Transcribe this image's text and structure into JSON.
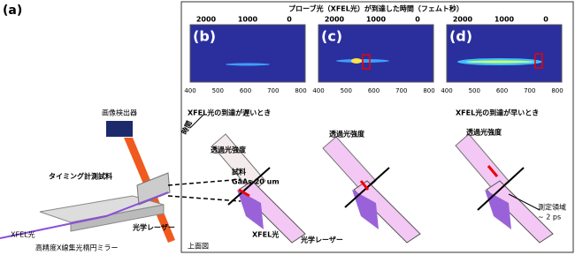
{
  "label_a": "(a)",
  "detector": "画像検出器",
  "timing_sample": "タイミング計測試料",
  "xfel_left": "XFEL光",
  "mirror": "高精度X線集光楕円ミラー",
  "laser_left": "光学レーザー",
  "panel_title": "プローブ光（XFEL光）が到達した時間（フェムト秒）",
  "panels": [
    {
      "label": "(b)",
      "top_ticks": [
        2000,
        1000,
        0
      ],
      "bottom_ticks": [
        400,
        500,
        600,
        700,
        800
      ]
    },
    {
      "label": "(c)",
      "top_ticks": [
        2000,
        1000,
        0
      ],
      "bottom_ticks": [
        400,
        500,
        600,
        700,
        800
      ]
    },
    {
      "label": "(d)",
      "top_ticks": [
        2000,
        1000,
        0
      ],
      "bottom_ticks": [
        400,
        500,
        600,
        700,
        800
      ]
    }
  ],
  "late": "XFEL光の到達が遅いとき",
  "early": "XFEL光の到達が早いとき",
  "time": "時間",
  "intensity": [
    "透過光強度",
    "透過光強度",
    "透過光強度"
  ],
  "sample": "試料",
  "sample_spec": "GaAs 20 um",
  "xfel_b": "XFEL光",
  "laser_b": "光学レーザー",
  "top_view": "上面図",
  "region": "測定領域",
  "region_size": "~ 2 ps"
}
